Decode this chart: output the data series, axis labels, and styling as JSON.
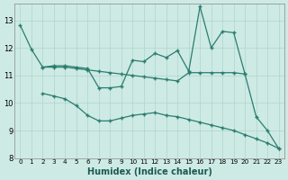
{
  "line_a_x": [
    0,
    1,
    2,
    3,
    4,
    5,
    6,
    7,
    8,
    9,
    10,
    11,
    12,
    13,
    14,
    15,
    16,
    17,
    18,
    19,
    20,
    21,
    22,
    23
  ],
  "line_a_y": [
    12.82,
    11.95,
    11.3,
    11.35,
    11.35,
    11.3,
    11.25,
    10.55,
    10.55,
    10.6,
    11.55,
    11.5,
    11.8,
    11.65,
    11.9,
    11.15,
    13.5,
    12.0,
    12.6,
    12.55,
    11.05,
    9.5,
    9.0,
    8.35
  ],
  "line_b_x": [
    2,
    3,
    4,
    5,
    6,
    7,
    8,
    9,
    10,
    11,
    12,
    13,
    14,
    15,
    16,
    17,
    18,
    19,
    20
  ],
  "line_b_y": [
    11.3,
    11.3,
    11.3,
    11.25,
    11.2,
    11.15,
    11.1,
    11.05,
    11.0,
    10.95,
    10.9,
    10.85,
    10.8,
    11.1,
    11.1,
    11.1,
    11.1,
    11.1,
    11.05
  ],
  "line_c_x": [
    2,
    3,
    4,
    5,
    6,
    7,
    8,
    9,
    10,
    11,
    12,
    13,
    14,
    15,
    16,
    17,
    18,
    19,
    20,
    21,
    22,
    23
  ],
  "line_c_y": [
    10.35,
    10.25,
    10.15,
    9.9,
    9.55,
    9.35,
    9.35,
    9.45,
    9.55,
    9.6,
    9.65,
    9.55,
    9.5,
    9.4,
    9.3,
    9.2,
    9.1,
    9.0,
    8.85,
    8.7,
    8.55,
    8.35
  ],
  "color": "#2a7d6f",
  "bg_color": "#ceeae5",
  "grid_color": "#afd4ce",
  "xlabel": "Humidex (Indice chaleur)",
  "ylim": [
    8,
    13.6
  ],
  "xlim": [
    -0.5,
    23.5
  ],
  "yticks": [
    8,
    9,
    10,
    11,
    12,
    13
  ],
  "xticks": [
    0,
    1,
    2,
    3,
    4,
    5,
    6,
    7,
    8,
    9,
    10,
    11,
    12,
    13,
    14,
    15,
    16,
    17,
    18,
    19,
    20,
    21,
    22,
    23
  ],
  "marker": "+",
  "markersize": 3.5,
  "linewidth": 0.9
}
